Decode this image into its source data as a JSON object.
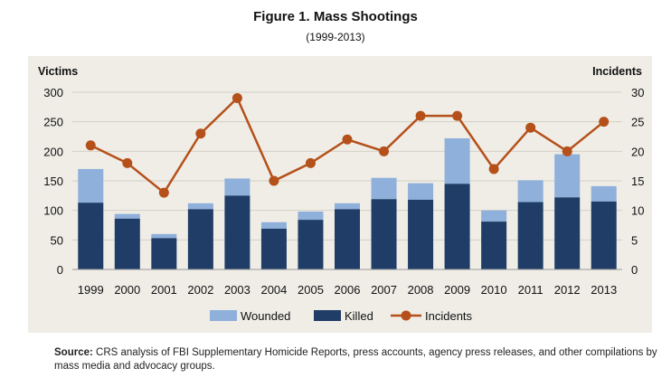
{
  "chart_data": {
    "type": "bar",
    "title": "Figure 1. Mass Shootings",
    "subtitle": "(1999-2013)",
    "ylabel_left": "Victims",
    "ylabel_right": "Incidents",
    "ylim_left": [
      0,
      300
    ],
    "ylim_right": [
      0,
      30
    ],
    "yticks_left": [
      "0",
      "50",
      "100",
      "150",
      "200",
      "250",
      "300"
    ],
    "yticks_right": [
      "0",
      "5",
      "10",
      "15",
      "20",
      "25",
      "30"
    ],
    "categories": [
      "1999",
      "2000",
      "2001",
      "2002",
      "2003",
      "2004",
      "2005",
      "2006",
      "2007",
      "2008",
      "2009",
      "2010",
      "2011",
      "2012",
      "2013"
    ],
    "series": [
      {
        "name": "Killed",
        "kind": "stacked-bar",
        "color": "#1f3d66",
        "values": [
          113,
          86,
          53,
          102,
          125,
          69,
          84,
          102,
          119,
          118,
          145,
          81,
          114,
          122,
          115
        ]
      },
      {
        "name": "Wounded",
        "kind": "stacked-bar",
        "color": "#8eb0db",
        "values": [
          57,
          8,
          7,
          10,
          29,
          11,
          14,
          10,
          36,
          28,
          77,
          19,
          37,
          73,
          26
        ]
      },
      {
        "name": "Incidents",
        "kind": "line",
        "axis": "right",
        "color": "#b5501a",
        "values": [
          21,
          18,
          13,
          23,
          29,
          15,
          18,
          22,
          20,
          26,
          26,
          17,
          24,
          20,
          25
        ]
      }
    ],
    "legend": [
      "Wounded",
      "Killed",
      "Incidents"
    ],
    "legend_position": "bottom",
    "grid": true
  },
  "source": {
    "label": "Source:",
    "text": "CRS analysis of FBI Supplementary Homicide Reports, press accounts, agency press releases, and other compilations by mass media and advocacy groups."
  }
}
